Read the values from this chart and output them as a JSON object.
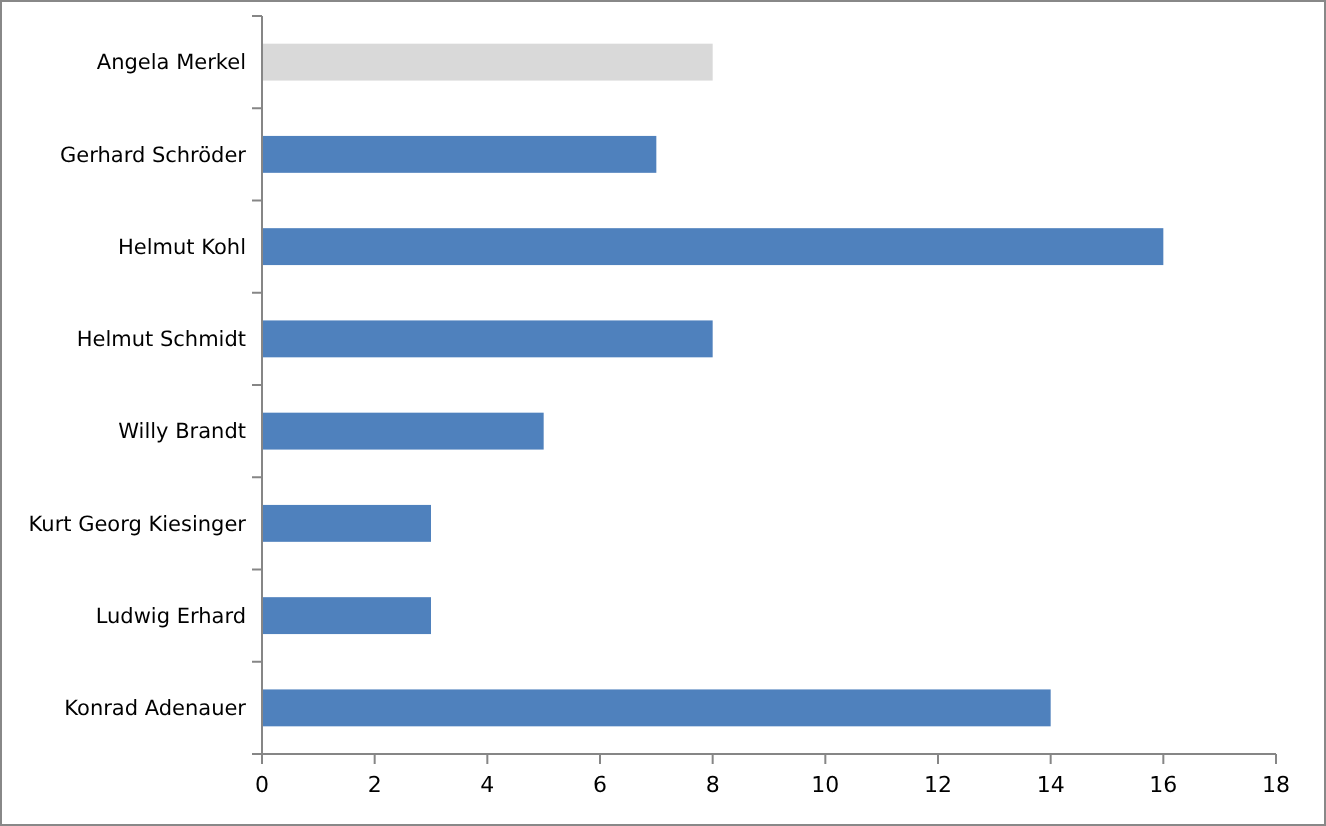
{
  "chart_data": {
    "type": "bar",
    "orientation": "horizontal",
    "categories": [
      "Angela Merkel",
      "Gerhard Schröder",
      "Helmut Kohl",
      "Helmut Schmidt",
      "Willy Brandt",
      "Kurt Georg Kiesinger",
      "Ludwig Erhard",
      "Konrad Adenauer"
    ],
    "values": [
      8,
      7,
      16,
      8,
      5,
      3,
      3,
      14
    ],
    "colors": [
      "#d9d9d9",
      "#4f81bd",
      "#4f81bd",
      "#4f81bd",
      "#4f81bd",
      "#4f81bd",
      "#4f81bd",
      "#4f81bd"
    ],
    "xlim": [
      0,
      18
    ],
    "xticks": [
      0,
      2,
      4,
      6,
      8,
      10,
      12,
      14,
      16,
      18
    ]
  }
}
